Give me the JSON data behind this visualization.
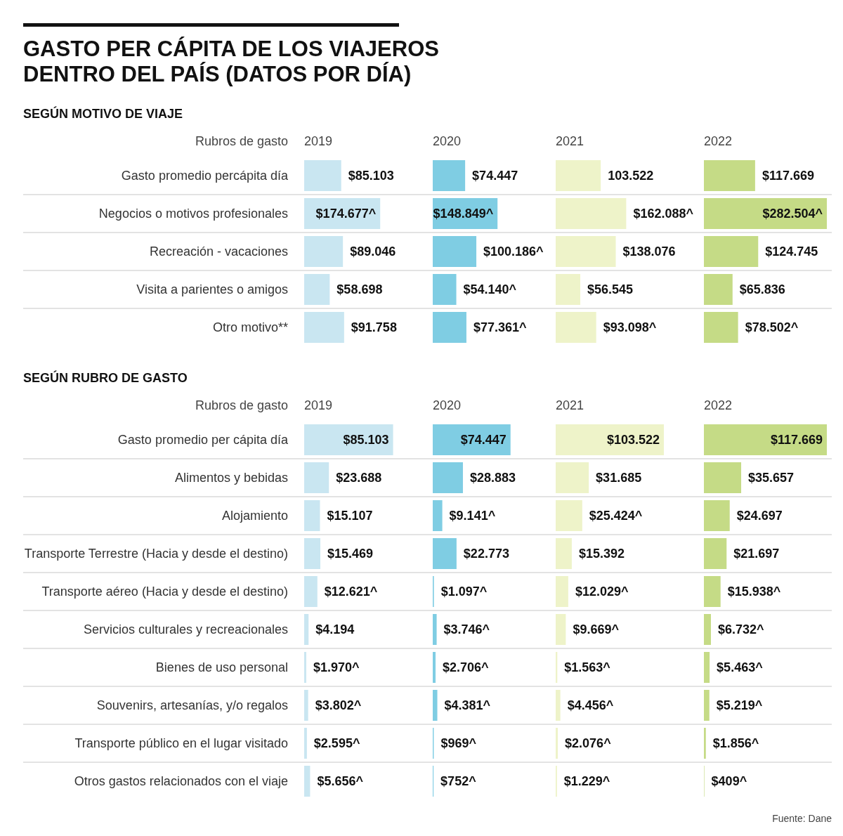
{
  "chart_data": [
    {
      "type": "bar",
      "orientation": "horizontal",
      "title": "GASTO PER CÁPITA DE LOS VIAJEROS DENTRO DEL PAÍS (DATOS POR DÍA)",
      "subtitle": "SEGÚN MOTIVO DE VIAJE",
      "ylabel": "Rubros de gasto",
      "xlabel": "2019",
      "tick_labels": "y",
      "color": "#c9e6f1",
      "categories": [
        "Gasto promedio percápita día",
        "Negocios o motivos profesionales",
        "Recreación - vacaciones",
        "Visita a parientes o amigos",
        "Otro motivo**"
      ],
      "values": [
        85103,
        174677,
        89046,
        58698,
        91758
      ],
      "value_labels": [
        "$85.103",
        "$174.677^",
        "$89.046",
        "$58.698",
        "$91.758"
      ]
    },
    {
      "type": "bar",
      "orientation": "horizontal",
      "xlabel": "2020",
      "tick_labels": false,
      "color": "#7fcde3",
      "categories": [
        null,
        null,
        null,
        null,
        null
      ],
      "values": [
        74447,
        148849,
        100186,
        54140,
        77361
      ],
      "value_labels": [
        "$74.447",
        "$148.849^",
        "$100.186^",
        "$54.140^",
        "$77.361^"
      ]
    },
    {
      "type": "bar",
      "orientation": "horizontal",
      "xlabel": "2021",
      "tick_labels": false,
      "color": "#eef3c9",
      "categories": [
        null,
        null,
        null,
        null,
        null
      ],
      "values": [
        103522,
        162088,
        138076,
        56545,
        93098
      ],
      "value_labels": [
        "103.522",
        "$162.088^",
        "$138.076",
        "$56.545",
        "$93.098^"
      ]
    },
    {
      "type": "bar",
      "orientation": "horizontal",
      "xlabel": "2022",
      "tick_labels": false,
      "color": "#c5db86",
      "categories": [
        null,
        null,
        null,
        null,
        null
      ],
      "values": [
        117669,
        282504,
        124745,
        65836,
        78502
      ],
      "value_labels": [
        "$117.669",
        "$282.504^",
        "$124.745",
        "$65.836",
        "$78.502^"
      ]
    },
    {
      "type": "bar",
      "orientation": "horizontal",
      "subtitle": "SEGÚN RUBRO DE GASTO",
      "ylabel": "Rubros de gasto",
      "xlabel": "2019",
      "tick_labels": "y",
      "color": "#c9e6f1",
      "categories": [
        "Gasto promedio per cápita día",
        "Alimentos y bebidas",
        "Alojamiento",
        "Transporte Terrestre (Hacia y desde el destino)",
        "Transporte aéreo (Hacia y desde el destino)",
        "Servicios culturales y recreacionales",
        "Bienes de uso personal",
        "Souvenirs, artesanías, y/o regalos",
        "Transporte público en el lugar visitado",
        "Otros gastos relacionados con el viaje"
      ],
      "values": [
        85103,
        23688,
        15107,
        15469,
        12621,
        4194,
        1970,
        3802,
        2595,
        5656
      ],
      "value_labels": [
        "$85.103",
        "$23.688",
        "$15.107",
        "$15.469",
        "$12.621^",
        "$4.194",
        "$1.970^",
        "$3.802^",
        "$2.595^",
        "$5.656^"
      ]
    },
    {
      "type": "bar",
      "orientation": "horizontal",
      "xlabel": "2020",
      "tick_labels": false,
      "color": "#7fcde3",
      "categories": [
        null,
        null,
        null,
        null,
        null,
        null,
        null,
        null,
        null,
        null
      ],
      "values": [
        74447,
        28883,
        9141,
        22773,
        1097,
        3746,
        2706,
        4381,
        969,
        752
      ],
      "value_labels": [
        "$74.447",
        "$28.883",
        "$9.141^",
        "$22.773",
        "$1.097^",
        "$3.746^",
        "$2.706^",
        "$4.381^",
        "$969^",
        "$752^"
      ]
    },
    {
      "type": "bar",
      "orientation": "horizontal",
      "xlabel": "2021",
      "tick_labels": false,
      "color": "#eef3c9",
      "categories": [
        null,
        null,
        null,
        null,
        null,
        null,
        null,
        null,
        null,
        null
      ],
      "values": [
        103522,
        31685,
        25424,
        15392,
        12029,
        9669,
        1563,
        4456,
        2076,
        1229
      ],
      "value_labels": [
        "$103.522",
        "$31.685",
        "$25.424^",
        "$15.392",
        "$12.029^",
        "$9.669^",
        "$1.563^",
        "$4.456^",
        "$2.076^",
        "$1.229^"
      ]
    },
    {
      "type": "bar",
      "orientation": "horizontal",
      "xlabel": "2022",
      "tick_labels": false,
      "color": "#c5db86",
      "categories": [
        null,
        null,
        null,
        null,
        null,
        null,
        null,
        null,
        null,
        null
      ],
      "values": [
        117669,
        35657,
        24697,
        21697,
        15938,
        6732,
        5463,
        5219,
        1856,
        409
      ],
      "value_labels": [
        "$117.669",
        "$35.657",
        "$24.697",
        "$21.697",
        "$15.938^",
        "$6.732^",
        "$5.463^",
        "$5.219^",
        "$1.856^",
        "$409^"
      ],
      "annotations": [
        "Fuente: Dane"
      ]
    }
  ]
}
